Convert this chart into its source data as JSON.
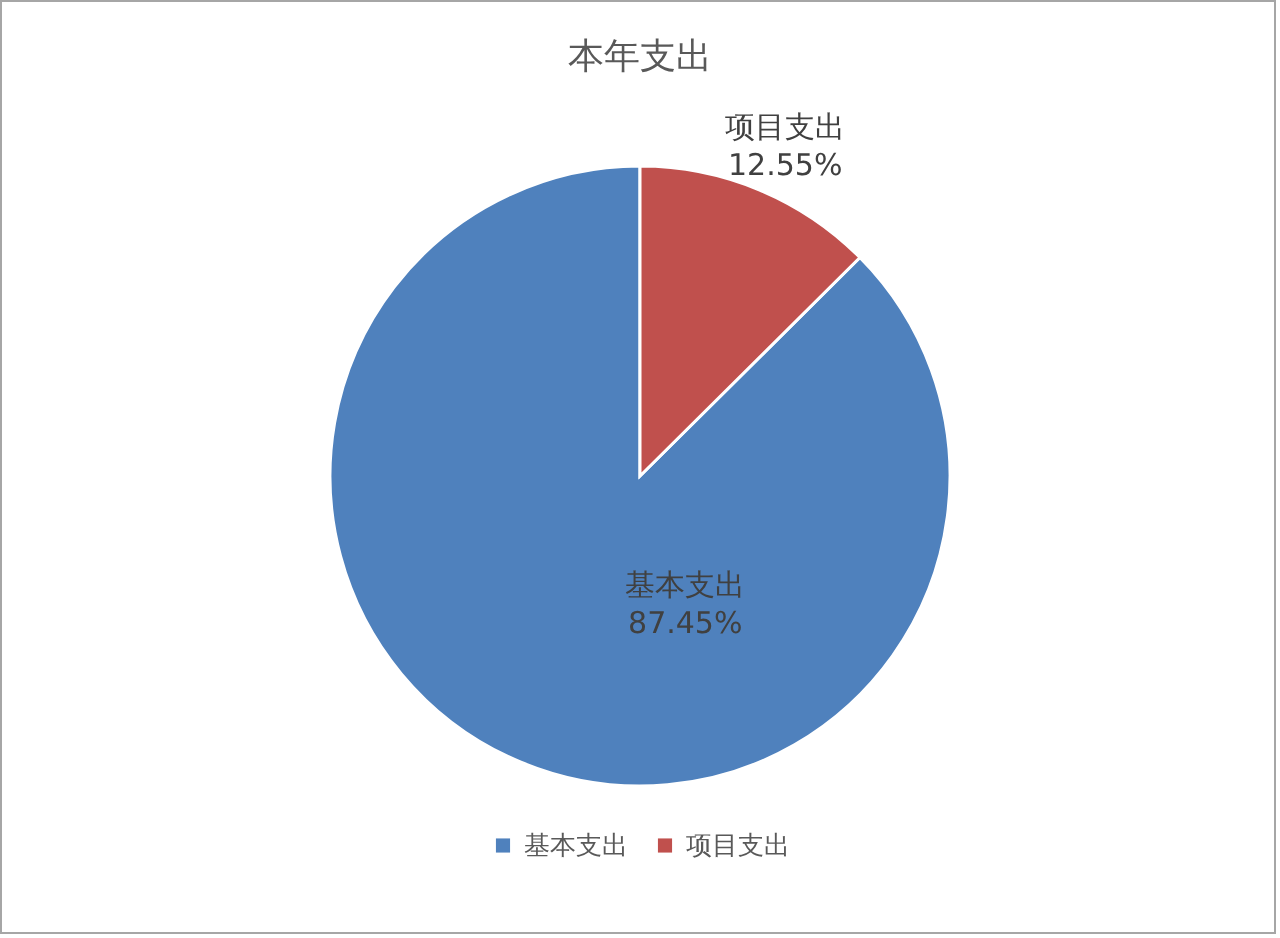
{
  "chart_data": {
    "type": "pie",
    "title": "本年支出",
    "categories": [
      "基本支出",
      "项目支出"
    ],
    "values": [
      87.45,
      12.55
    ],
    "colors": [
      "#4f81bd",
      "#c0504d"
    ],
    "value_labels": [
      "87.45%",
      "12.55%"
    ],
    "legend": "bottom"
  }
}
